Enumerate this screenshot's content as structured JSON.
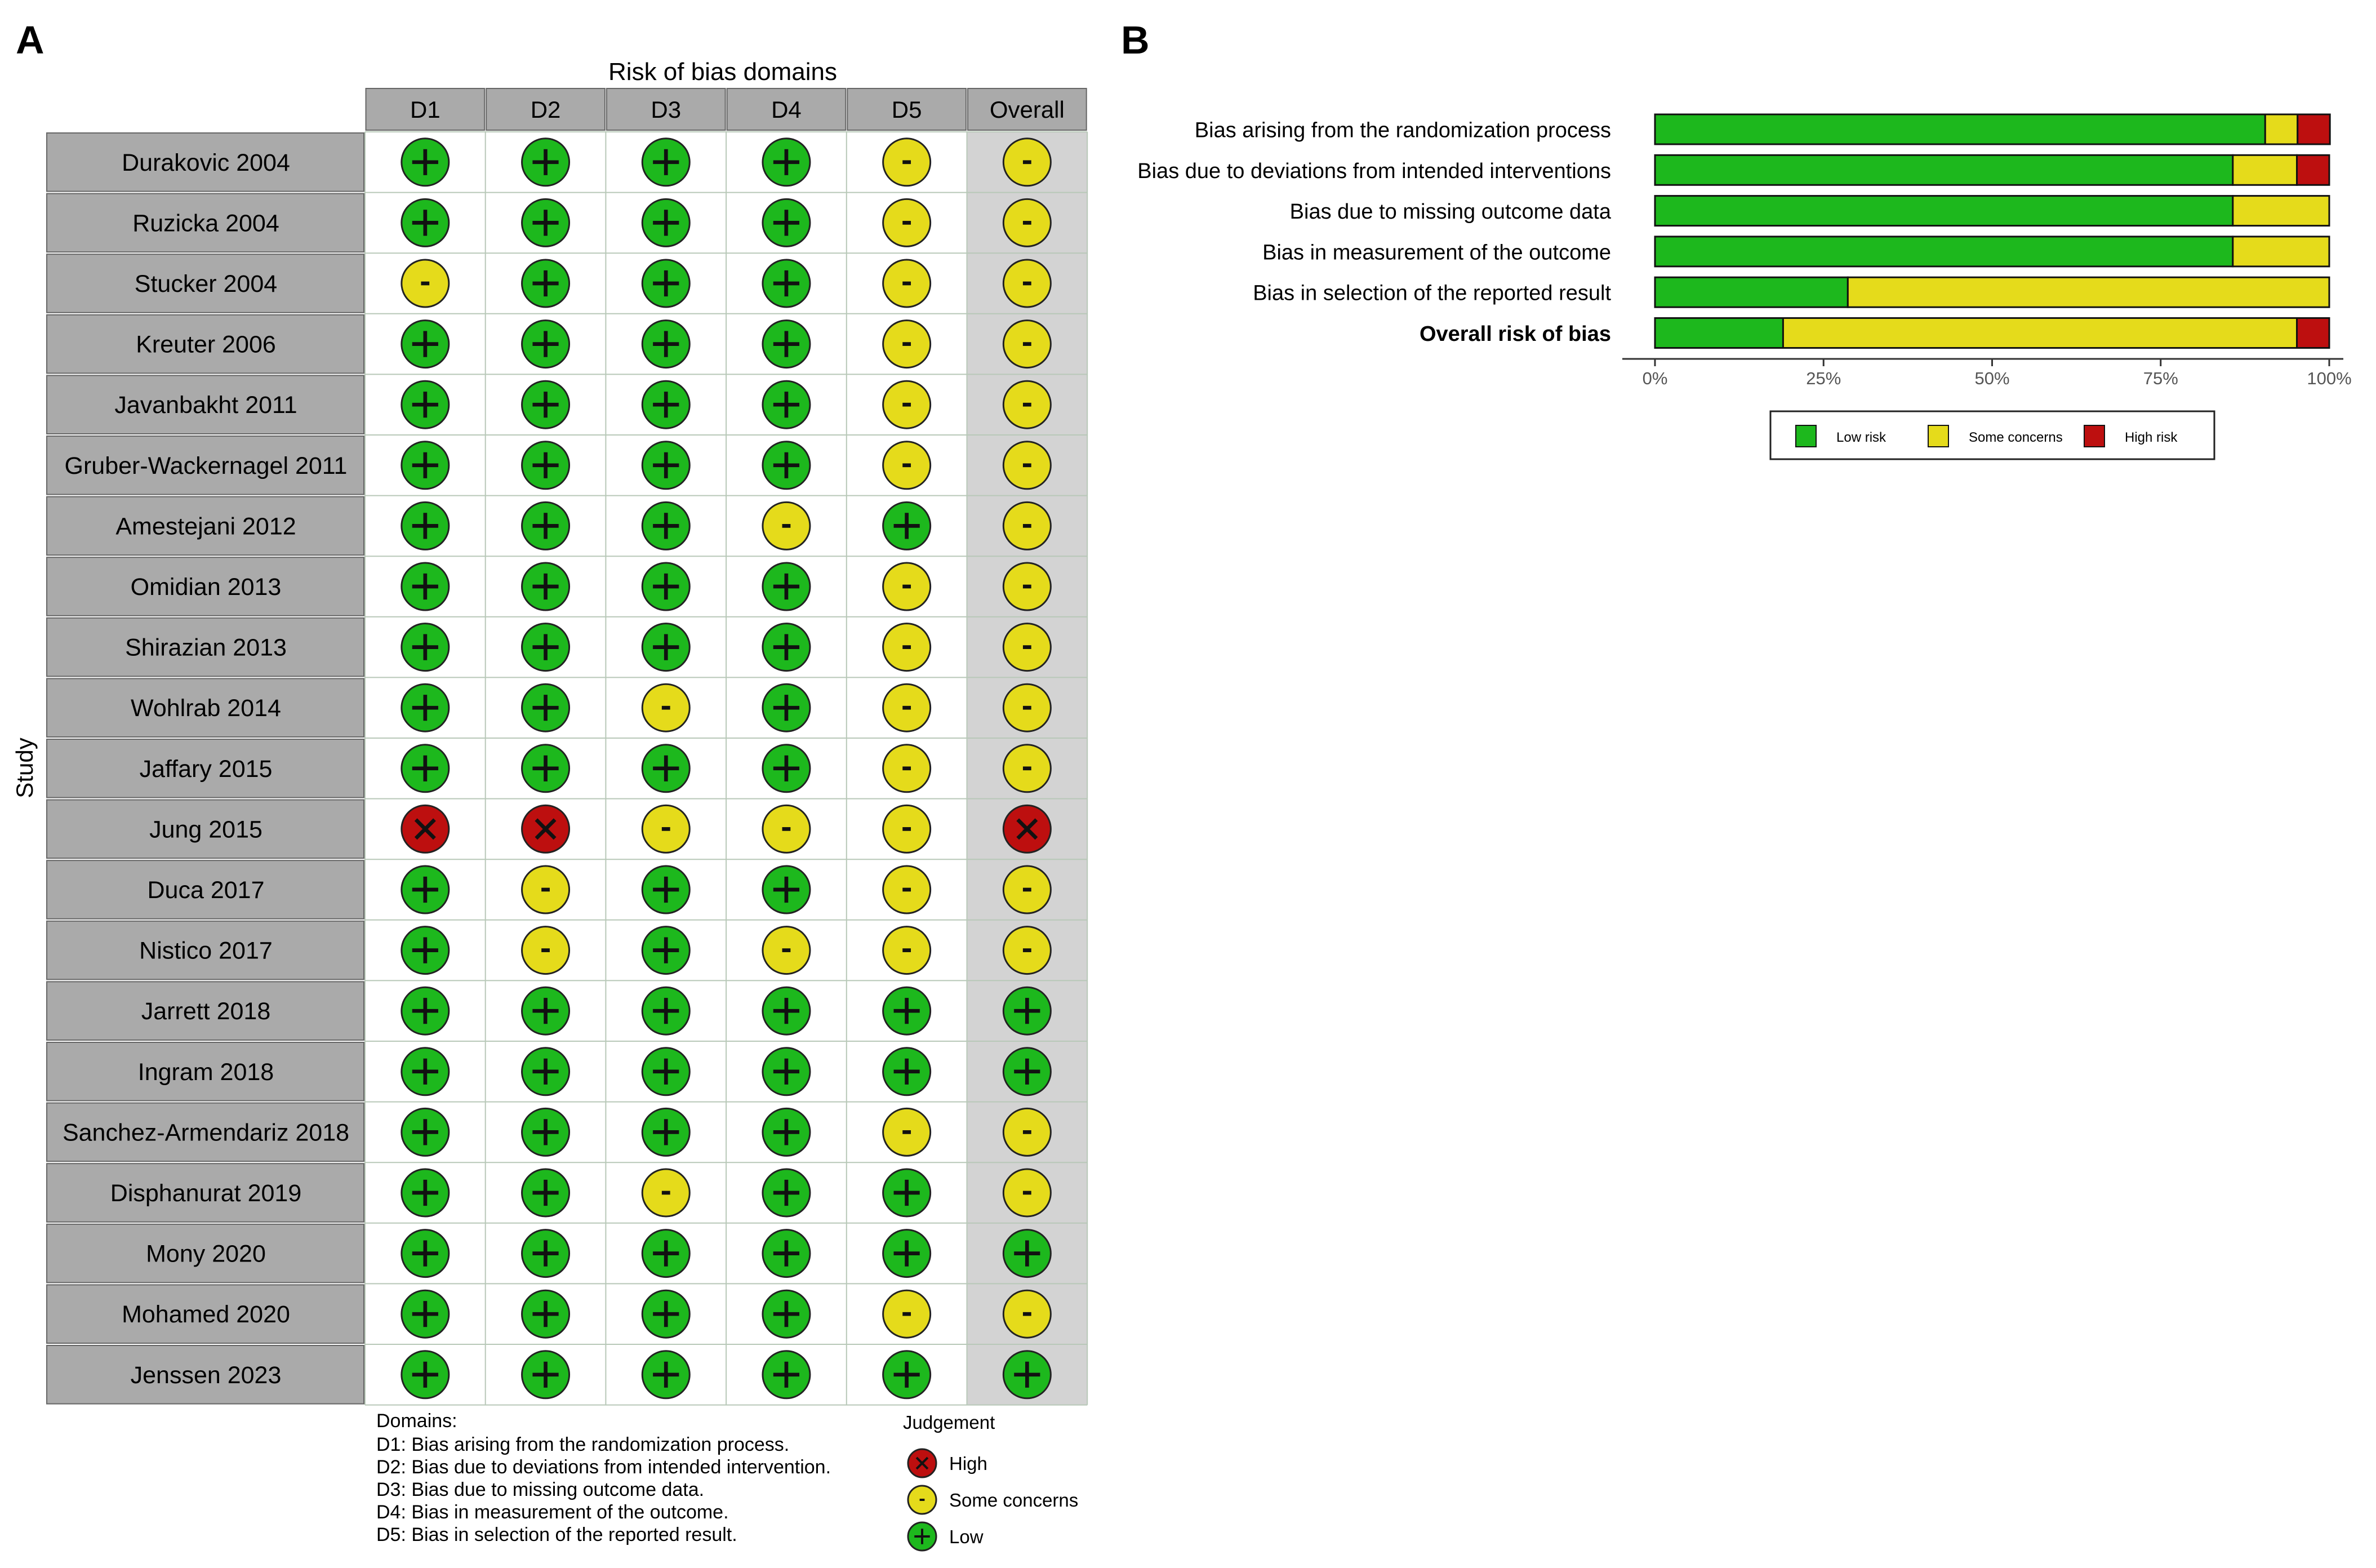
{
  "panel_labels": {
    "a": "A",
    "b": "B"
  },
  "colors": {
    "low": "#1db81d",
    "some": "#e5db1b",
    "high": "#bd0f0f",
    "header_bg": "#aaaaaa",
    "study_bg": "#aaaaaa",
    "overall_bg": "#d3d3d3"
  },
  "chart_data": [
    {
      "type": "table",
      "title": "Risk of bias domains",
      "ylabel": "Study",
      "columns": [
        "D1",
        "D2",
        "D3",
        "D4",
        "D5",
        "Overall"
      ],
      "symbols": {
        "low": "+",
        "some": "-",
        "high": "X"
      },
      "rows": [
        {
          "study": "Durakovic 2004",
          "judgements": [
            "low",
            "low",
            "low",
            "low",
            "some",
            "some"
          ]
        },
        {
          "study": "Ruzicka 2004",
          "judgements": [
            "low",
            "low",
            "low",
            "low",
            "some",
            "some"
          ]
        },
        {
          "study": "Stucker 2004",
          "judgements": [
            "some",
            "low",
            "low",
            "low",
            "some",
            "some"
          ]
        },
        {
          "study": "Kreuter 2006",
          "judgements": [
            "low",
            "low",
            "low",
            "low",
            "some",
            "some"
          ]
        },
        {
          "study": "Javanbakht 2011",
          "judgements": [
            "low",
            "low",
            "low",
            "low",
            "some",
            "some"
          ]
        },
        {
          "study": "Gruber-Wackernagel 2011",
          "judgements": [
            "low",
            "low",
            "low",
            "low",
            "some",
            "some"
          ]
        },
        {
          "study": "Amestejani 2012",
          "judgements": [
            "low",
            "low",
            "low",
            "some",
            "low",
            "some"
          ]
        },
        {
          "study": "Omidian 2013",
          "judgements": [
            "low",
            "low",
            "low",
            "low",
            "some",
            "some"
          ]
        },
        {
          "study": "Shirazian 2013",
          "judgements": [
            "low",
            "low",
            "low",
            "low",
            "some",
            "some"
          ]
        },
        {
          "study": "Wohlrab 2014",
          "judgements": [
            "low",
            "low",
            "some",
            "low",
            "some",
            "some"
          ]
        },
        {
          "study": "Jaffary 2015",
          "judgements": [
            "low",
            "low",
            "low",
            "low",
            "some",
            "some"
          ]
        },
        {
          "study": "Jung 2015",
          "judgements": [
            "high",
            "high",
            "some",
            "some",
            "some",
            "high"
          ]
        },
        {
          "study": "Duca 2017",
          "judgements": [
            "low",
            "some",
            "low",
            "low",
            "some",
            "some"
          ]
        },
        {
          "study": "Nistico 2017",
          "judgements": [
            "low",
            "some",
            "low",
            "some",
            "some",
            "some"
          ]
        },
        {
          "study": "Jarrett 2018",
          "judgements": [
            "low",
            "low",
            "low",
            "low",
            "low",
            "low"
          ]
        },
        {
          "study": "Ingram 2018",
          "judgements": [
            "low",
            "low",
            "low",
            "low",
            "low",
            "low"
          ]
        },
        {
          "study": "Sanchez-Armendariz 2018",
          "judgements": [
            "low",
            "low",
            "low",
            "low",
            "some",
            "some"
          ]
        },
        {
          "study": "Disphanurat 2019",
          "judgements": [
            "low",
            "low",
            "some",
            "low",
            "low",
            "some"
          ]
        },
        {
          "study": "Mony 2020",
          "judgements": [
            "low",
            "low",
            "low",
            "low",
            "low",
            "low"
          ]
        },
        {
          "study": "Mohamed 2020",
          "judgements": [
            "low",
            "low",
            "low",
            "low",
            "some",
            "some"
          ]
        },
        {
          "study": "Jenssen 2023",
          "judgements": [
            "low",
            "low",
            "low",
            "low",
            "low",
            "low"
          ]
        }
      ],
      "domains_title": "Domains:",
      "domains": [
        "D1: Bias arising from the randomization process.",
        "D2: Bias due to deviations from intended intervention.",
        "D3: Bias due to missing outcome data.",
        "D4: Bias in measurement of the outcome.",
        "D5: Bias in selection of the reported result."
      ],
      "legend_title": "Judgement",
      "legend": [
        {
          "key": "high",
          "label": "High"
        },
        {
          "key": "some",
          "label": "Some concerns"
        },
        {
          "key": "low",
          "label": "Low"
        }
      ]
    },
    {
      "type": "bar",
      "stacked": true,
      "orientation": "horizontal",
      "xlim": [
        0,
        100
      ],
      "ticks": [
        0,
        25,
        50,
        75,
        100
      ],
      "tick_labels": [
        "0%",
        "25%",
        "50%",
        "75%",
        "100%"
      ],
      "categories": [
        "Bias arising from the randomization process",
        "Bias due to deviations from intended interventions",
        "Bias due to missing outcome data",
        "Bias in measurement of the outcome",
        "Bias in selection of the reported result",
        "Overall risk of bias"
      ],
      "bold_category": "Overall risk of bias",
      "series": [
        {
          "name": "Low risk",
          "key": "low",
          "values": [
            90.5,
            85.7,
            85.7,
            85.7,
            28.6,
            19.0
          ]
        },
        {
          "name": "Some concerns",
          "key": "some",
          "values": [
            4.8,
            9.5,
            14.3,
            14.3,
            71.4,
            76.2
          ]
        },
        {
          "name": "High risk",
          "key": "high",
          "values": [
            4.8,
            4.8,
            0,
            0,
            0,
            4.8
          ]
        }
      ]
    }
  ]
}
